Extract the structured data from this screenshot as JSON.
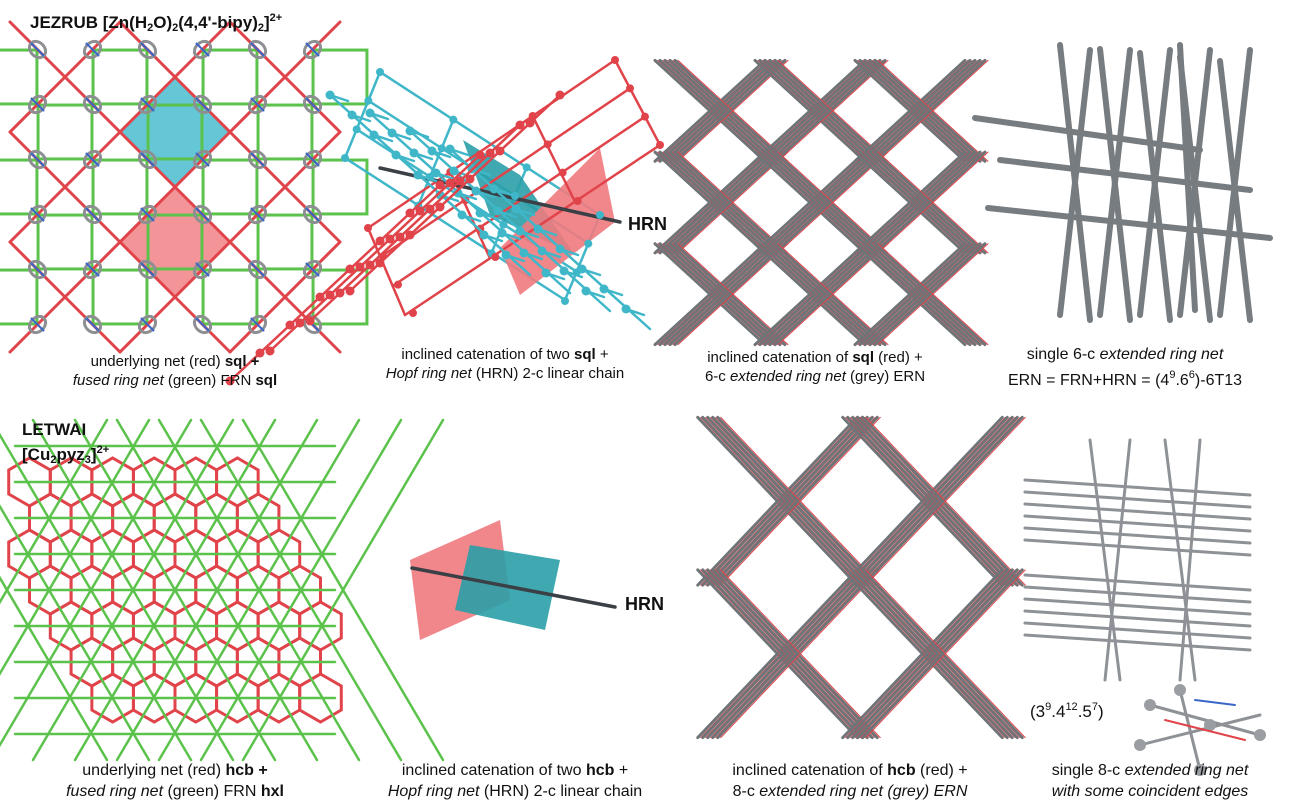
{
  "top_title": {
    "a": "JEZRUB [Zn(H",
    "b": "2",
    "c": "O)",
    "d": "2",
    "e": "(4,4'-bipy)",
    "f": "2",
    "g": "]",
    "h": "2+"
  },
  "bottom_title": {
    "a": "LETWAI",
    "b": "[Cu",
    "c": "2",
    "d": "pyz",
    "e": "3",
    "f": "]",
    "g": "2+"
  },
  "hrn_label": "HRN",
  "captions": {
    "c1": {
      "l1a": "underlying net (red) ",
      "l1b": "sql +",
      "l2a": "fused ring net",
      "l2b": " (green) FRN ",
      "l2c": "sql"
    },
    "c2": {
      "l1a": "inclined catenation of two ",
      "l1b": "sql",
      "l1c": " +",
      "l2a": "Hopf ring net",
      "l2b": " (HRN) 2-c linear chain"
    },
    "c3": {
      "l1a": "inclined catenation of ",
      "l1b": "sql",
      "l1c": " (red) +",
      "l2a": "6-c ",
      "l2b": "extended ring net",
      "l2c": " (grey) ERN"
    },
    "c4": {
      "l1a": "single 6-c ",
      "l1b": "extended ring net",
      "l2a": "ERN = FRN+HRN = (4",
      "l2b": "9",
      "l2c": ".6",
      "l2d": "6",
      "l2e": ")-6T13"
    },
    "c5": {
      "l1a": "underlying net (red) ",
      "l1b": "hcb +",
      "l2a": "fused ring net",
      "l2b": " (green) FRN ",
      "l2c": "hxl"
    },
    "c6": {
      "l1a": "inclined catenation of two ",
      "l1b": "hcb",
      "l1c": " +",
      "l2a": "Hopf ring net",
      "l2b": " (HRN) 2-c linear chain"
    },
    "c7": {
      "l1a": "inclined catenation of ",
      "l1b": "hcb",
      "l1c": " (red) +",
      "l2a": "8-c ",
      "l2b": "extended ring net (grey) ERN"
    },
    "c8": {
      "l1a": "single 8-c ",
      "l1b": "extended ring net",
      "l2": "with some coincident edges"
    }
  },
  "vertex_symbol": {
    "a": "(3",
    "b": "9",
    "c": ".4",
    "d": "12",
    "e": ".5",
    "f": "7",
    "g": ")"
  },
  "colors": {
    "red": "#e0444a",
    "red_fill": "#f07a7e",
    "cyan": "#3fb7c9",
    "cyan_fill": "#3fb9cc",
    "green": "#5bc24b",
    "grey": "#6f7478",
    "dark": "#3a4045",
    "blue": "#3a66c8"
  }
}
